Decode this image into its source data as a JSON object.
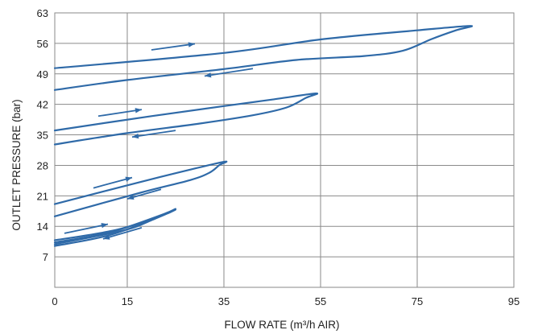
{
  "chart_data": {
    "type": "line",
    "title": "",
    "xlabel": "FLOW RATE (m³/h AIR)",
    "ylabel": "OUTLET PRESSURE (bar)",
    "xlim": [
      0,
      95
    ],
    "ylim": [
      0,
      63
    ],
    "xticks": [
      0,
      15,
      35,
      55,
      75,
      95
    ],
    "yticks": [
      7,
      14,
      21,
      28,
      35,
      42,
      49,
      56,
      63
    ],
    "grid": true,
    "legend": "none",
    "line_color": "#2f6aa8",
    "series": [
      {
        "curve": [
          [
            0,
            50.3
          ],
          [
            35,
            53.8
          ],
          [
            55,
            56.9
          ],
          [
            75,
            59.0
          ],
          [
            86,
            60.0
          ],
          [
            83,
            59.0
          ],
          [
            78,
            57.0
          ],
          [
            72,
            54.3
          ],
          [
            64,
            53.1
          ],
          [
            50,
            52.2
          ],
          [
            35,
            50.1
          ],
          [
            15,
            47.6
          ],
          [
            0,
            45.3
          ]
        ],
        "arrows": [
          {
            "from": [
              20,
              54.5
            ],
            "to": [
              29,
              55.9
            ]
          },
          {
            "from": [
              41,
              50.2
            ],
            "to": [
              31,
              48.5
            ]
          }
        ]
      },
      {
        "curve": [
          [
            0,
            36.0
          ],
          [
            20,
            39.3
          ],
          [
            35,
            41.6
          ],
          [
            45,
            43.1
          ],
          [
            54,
            44.5
          ],
          [
            52,
            43.5
          ],
          [
            48,
            41.3
          ],
          [
            41,
            39.5
          ],
          [
            30,
            37.6
          ],
          [
            15,
            35.4
          ],
          [
            0,
            32.8
          ]
        ],
        "arrows": [
          {
            "from": [
              9,
              39.3
            ],
            "to": [
              18,
              40.8
            ]
          },
          {
            "from": [
              25,
              36.0
            ],
            "to": [
              16,
              34.5
            ]
          }
        ]
      },
      {
        "curve": [
          [
            0,
            19.1
          ],
          [
            15,
            23.4
          ],
          [
            25,
            26.2
          ],
          [
            35,
            28.8
          ],
          [
            34,
            28.0
          ],
          [
            32,
            26.3
          ],
          [
            28,
            24.6
          ],
          [
            18,
            21.8
          ],
          [
            0,
            16.3
          ]
        ],
        "arrows": [
          {
            "from": [
              8,
              22.8
            ],
            "to": [
              16,
              25.2
            ]
          },
          {
            "from": [
              22,
              22.5
            ],
            "to": [
              15,
              20.3
            ]
          }
        ]
      },
      {
        "curve": [
          [
            0,
            10.8
          ],
          [
            12,
            13.0
          ],
          [
            20,
            15.6
          ],
          [
            25,
            18.0
          ],
          [
            20,
            15.4
          ],
          [
            14,
            13.0
          ],
          [
            0,
            9.9
          ]
        ],
        "arrows": [
          {
            "from": [
              2,
              12.4
            ],
            "to": [
              11,
              14.5
            ]
          },
          {
            "from": [
              18,
              13.7
            ],
            "to": [
              10,
              11.1
            ]
          }
        ]
      },
      {
        "curve": [
          [
            0,
            10.3
          ],
          [
            12,
            12.8
          ],
          [
            25,
            17.8
          ],
          [
            12,
            12.2
          ],
          [
            0,
            9.5
          ]
        ],
        "arrows": []
      }
    ]
  }
}
